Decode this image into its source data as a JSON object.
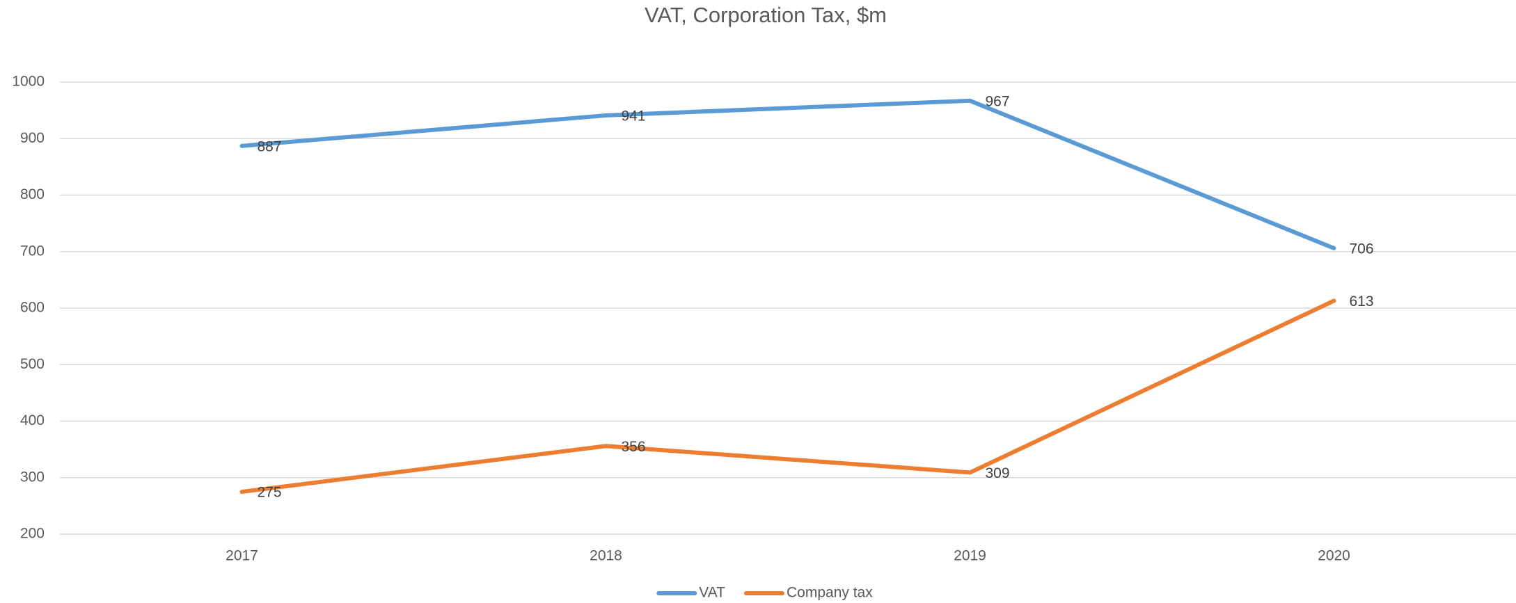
{
  "chart_data": {
    "type": "line",
    "title": "VAT, Corporation Tax, $m",
    "categories": [
      "2017",
      "2018",
      "2019",
      "2020"
    ],
    "series": [
      {
        "name": "VAT",
        "color": "#5b9bd5",
        "values": [
          887,
          941,
          967,
          706
        ]
      },
      {
        "name": "Company tax",
        "color": "#ed7d31",
        "values": [
          275,
          356,
          309,
          613
        ]
      }
    ],
    "ylim": [
      200,
      1000
    ],
    "yticks": [
      200,
      300,
      400,
      500,
      600,
      700,
      800,
      900,
      1000
    ],
    "grid": true,
    "legend": "bottom"
  }
}
